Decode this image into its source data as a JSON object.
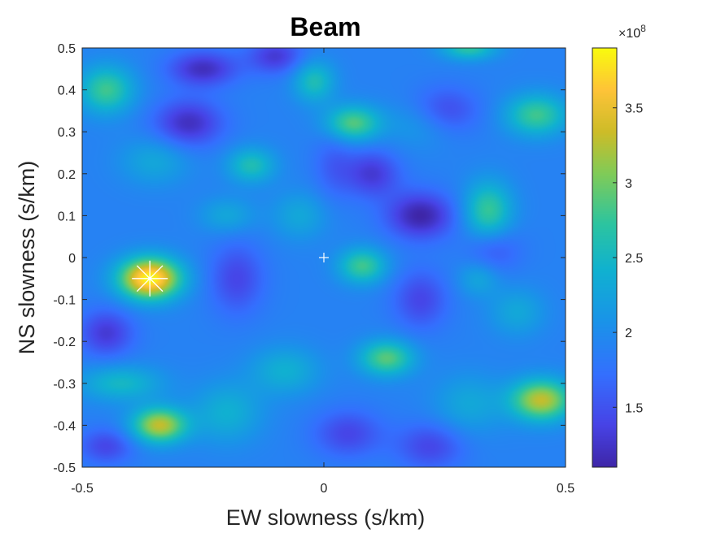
{
  "chart_data": {
    "type": "heatmap",
    "title": "Beam",
    "xlabel": "EW slowness (s/km)",
    "ylabel": "NS slowness (s/km)",
    "xlim": [
      -0.5,
      0.5
    ],
    "ylim": [
      -0.5,
      0.5
    ],
    "x_ticks": [
      -0.5,
      0,
      0.5
    ],
    "x_tick_labels": [
      "-0.5",
      "0",
      "0.5"
    ],
    "y_ticks": [
      0.5,
      0.4,
      0.3,
      0.2,
      0.1,
      0,
      -0.1,
      -0.2,
      -0.3,
      -0.4,
      -0.5
    ],
    "y_tick_labels": [
      "0.5",
      "0.4",
      "0.3",
      "0.2",
      "0.1",
      "0",
      "-0.1",
      "-0.2",
      "-0.3",
      "-0.4",
      "-0.5"
    ],
    "colormap": "parula",
    "colorbar": {
      "range": [
        1.1,
        3.9
      ],
      "ticks": [
        1.5,
        2,
        2.5,
        3,
        3.5
      ],
      "tick_labels": [
        "1.5",
        "2",
        "2.5",
        "3",
        "3.5"
      ],
      "exponent_label": "×10",
      "exponent": "8"
    },
    "background_level": 1.9,
    "features": [
      {
        "x": -0.36,
        "y": -0.05,
        "value": 3.9,
        "sx": 0.045,
        "sy": 0.035
      },
      {
        "x": -0.34,
        "y": -0.4,
        "value": 3.3,
        "sx": 0.04,
        "sy": 0.03
      },
      {
        "x": 0.45,
        "y": -0.34,
        "value": 3.3,
        "sx": 0.045,
        "sy": 0.035
      },
      {
        "x": -0.45,
        "y": 0.4,
        "value": 2.8,
        "sx": 0.04,
        "sy": 0.04
      },
      {
        "x": 0.44,
        "y": 0.34,
        "value": 2.8,
        "sx": 0.045,
        "sy": 0.035
      },
      {
        "x": 0.06,
        "y": 0.32,
        "value": 2.9,
        "sx": 0.04,
        "sy": 0.03
      },
      {
        "x": 0.13,
        "y": -0.24,
        "value": 2.9,
        "sx": 0.04,
        "sy": 0.03
      },
      {
        "x": 0.08,
        "y": -0.02,
        "value": 2.8,
        "sx": 0.035,
        "sy": 0.03
      },
      {
        "x": 0.34,
        "y": 0.11,
        "value": 2.8,
        "sx": 0.035,
        "sy": 0.05
      },
      {
        "x": -0.15,
        "y": 0.22,
        "value": 2.6,
        "sx": 0.035,
        "sy": 0.03
      },
      {
        "x": -0.02,
        "y": 0.42,
        "value": 2.6,
        "sx": 0.03,
        "sy": 0.035
      },
      {
        "x": 0.3,
        "y": 0.5,
        "value": 2.7,
        "sx": 0.04,
        "sy": 0.02
      },
      {
        "x": -0.42,
        "y": -0.3,
        "value": 2.5,
        "sx": 0.06,
        "sy": 0.03
      },
      {
        "x": -0.2,
        "y": -0.37,
        "value": 2.4,
        "sx": 0.05,
        "sy": 0.05
      },
      {
        "x": -0.05,
        "y": 0.1,
        "value": 2.3,
        "sx": 0.04,
        "sy": 0.04
      },
      {
        "x": -0.2,
        "y": 0.1,
        "value": 2.3,
        "sx": 0.04,
        "sy": 0.03
      },
      {
        "x": -0.08,
        "y": -0.27,
        "value": 2.4,
        "sx": 0.05,
        "sy": 0.04
      },
      {
        "x": 0.3,
        "y": -0.35,
        "value": 2.3,
        "sx": 0.05,
        "sy": 0.05
      },
      {
        "x": 0.4,
        "y": -0.13,
        "value": 2.3,
        "sx": 0.04,
        "sy": 0.04
      },
      {
        "x": -0.35,
        "y": 0.23,
        "value": 2.3,
        "sx": 0.05,
        "sy": 0.04
      },
      {
        "x": 0.2,
        "y": 0.32,
        "value": 2.2,
        "sx": 0.05,
        "sy": 0.04
      },
      {
        "x": 0.32,
        "y": -0.05,
        "value": 2.3,
        "sx": 0.03,
        "sy": 0.03
      },
      {
        "x": -0.25,
        "y": 0.45,
        "value": 1.2,
        "sx": 0.05,
        "sy": 0.03
      },
      {
        "x": -0.28,
        "y": 0.32,
        "value": 1.2,
        "sx": 0.05,
        "sy": 0.04
      },
      {
        "x": 0.2,
        "y": 0.1,
        "value": 1.1,
        "sx": 0.05,
        "sy": 0.04
      },
      {
        "x": 0.1,
        "y": 0.2,
        "value": 1.3,
        "sx": 0.04,
        "sy": 0.04
      },
      {
        "x": -0.45,
        "y": -0.18,
        "value": 1.3,
        "sx": 0.04,
        "sy": 0.04
      },
      {
        "x": -0.18,
        "y": -0.05,
        "value": 1.4,
        "sx": 0.04,
        "sy": 0.06
      },
      {
        "x": 0.25,
        "y": 0.35,
        "value": 1.4,
        "sx": 0.05,
        "sy": 0.04
      },
      {
        "x": 0.35,
        "y": 0.02,
        "value": 1.5,
        "sx": 0.04,
        "sy": 0.04
      },
      {
        "x": 0.2,
        "y": -0.1,
        "value": 1.4,
        "sx": 0.04,
        "sy": 0.05
      },
      {
        "x": -0.1,
        "y": 0.48,
        "value": 1.3,
        "sx": 0.04,
        "sy": 0.03
      },
      {
        "x": 0.05,
        "y": -0.42,
        "value": 1.4,
        "sx": 0.05,
        "sy": 0.04
      },
      {
        "x": 0.22,
        "y": -0.45,
        "value": 1.4,
        "sx": 0.05,
        "sy": 0.04
      },
      {
        "x": -0.45,
        "y": -0.45,
        "value": 1.4,
        "sx": 0.04,
        "sy": 0.03
      },
      {
        "x": 0.02,
        "y": 0.22,
        "value": 1.6,
        "sx": 0.03,
        "sy": 0.06
      }
    ],
    "markers": [
      {
        "name": "beam-maximum",
        "x": -0.36,
        "y": -0.05,
        "symbol": "asterisk"
      },
      {
        "name": "origin",
        "x": 0,
        "y": 0,
        "symbol": "plus"
      }
    ]
  }
}
